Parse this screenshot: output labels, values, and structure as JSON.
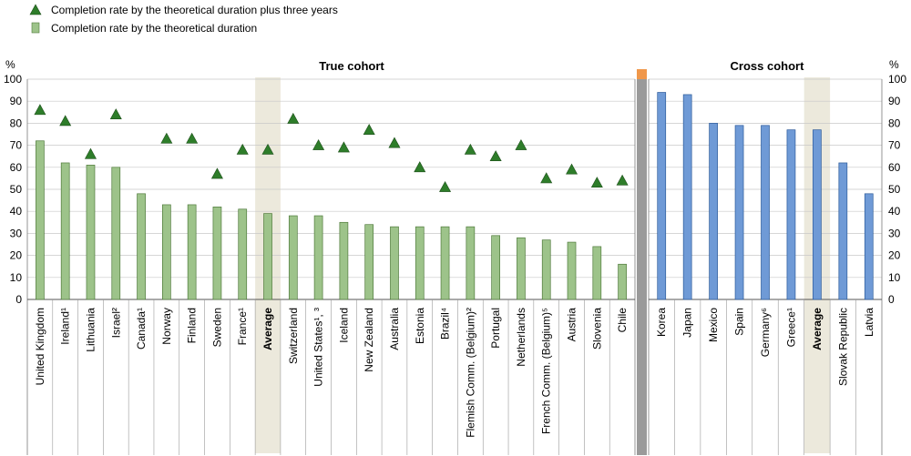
{
  "legend": {
    "triangle_label": "Completion rate by the theoretical duration plus three years",
    "bar_label": "Completion rate by the theoretical duration"
  },
  "axis": {
    "left_unit": "%",
    "right_unit": "%",
    "ticks": [
      0,
      10,
      20,
      30,
      40,
      50,
      60,
      70,
      80,
      90,
      100
    ]
  },
  "colors": {
    "green_bar": "#9dc38a",
    "green_bar_edge": "#4f7a3b",
    "triangle": "#2e7d2a",
    "blue_bar": "#6f9ad6",
    "blue_bar_edge": "#2c5a9a",
    "average_band": "#ece9dc",
    "separator": "#9a9a9a",
    "separator_cap": "#f0974a"
  },
  "chart_data": [
    {
      "type": "bar",
      "title": "True cohort",
      "ylim": [
        0,
        100
      ],
      "categories": [
        "United Kingdom",
        "Ireland¹",
        "Lithuania",
        "Israel²",
        "Canada¹",
        "Norway",
        "Finland",
        "Sweden",
        "France¹",
        "Average",
        "Switzerland",
        "United States¹, ³",
        "Iceland",
        "New Zealand",
        "Australia",
        "Estonia",
        "Brazil⁴",
        "Flemish Comm. (Belgium)²",
        "Portugal",
        "Netherlands",
        "French Comm. (Belgium)⁵",
        "Austria",
        "Slovenia",
        "Chile"
      ],
      "series": [
        {
          "name": "Completion rate by the theoretical duration",
          "values": [
            72,
            62,
            61,
            60,
            48,
            43,
            43,
            42,
            41,
            39,
            38,
            38,
            35,
            34,
            33,
            33,
            33,
            33,
            29,
            28,
            27,
            26,
            24,
            16
          ]
        },
        {
          "name": "Completion rate by the theoretical duration plus three years",
          "values": [
            86,
            81,
            66,
            84,
            null,
            73,
            73,
            57,
            68,
            68,
            82,
            70,
            69,
            77,
            71,
            60,
            51,
            68,
            65,
            70,
            55,
            59,
            53,
            54
          ]
        }
      ],
      "highlight": "Average"
    },
    {
      "type": "bar",
      "title": "Cross cohort",
      "ylim": [
        0,
        100
      ],
      "categories": [
        "Korea",
        "Japan",
        "Mexico",
        "Spain",
        "Germany⁶",
        "Greece¹",
        "Average",
        "Slovak Republic",
        "Latvia"
      ],
      "series": [
        {
          "name": "Completion rate by the theoretical duration",
          "values": [
            94,
            93,
            80,
            79,
            79,
            77,
            77,
            62,
            48
          ]
        }
      ],
      "highlight": "Average"
    }
  ]
}
